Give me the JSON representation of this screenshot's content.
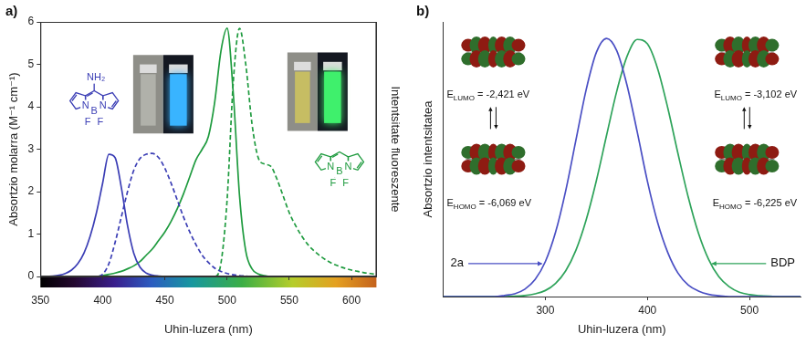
{
  "chart_data": [
    {
      "type": "line",
      "title": "a)",
      "x_label": "Uhin-luzera (nm)",
      "y_label": "Absortzio molarra (M⁻¹ cm⁻¹)",
      "y2_label": "Intentsitate fluoreszente",
      "x": [
        350,
        355,
        360,
        365,
        370,
        375,
        380,
        385,
        390,
        395,
        400,
        405,
        410,
        415,
        420,
        425,
        430,
        435,
        440,
        445,
        450,
        455,
        460,
        465,
        470,
        475,
        480,
        485,
        490,
        495,
        500,
        505,
        510,
        515,
        520,
        525,
        530,
        535,
        540,
        545,
        550,
        555,
        560,
        565,
        570,
        575,
        580,
        585,
        590,
        595,
        600,
        605,
        610,
        615,
        620
      ],
      "xlim": [
        350,
        620
      ],
      "xticks": [
        350,
        400,
        450,
        500,
        550,
        600
      ],
      "ylim": [
        0,
        6
      ],
      "yticks": [
        0,
        1,
        2,
        3,
        4,
        5,
        6
      ],
      "grid": false,
      "series": [
        {
          "color": "#3b3eb5",
          "line_style": "solid",
          "values": [
            0,
            0,
            0.01,
            0.03,
            0.07,
            0.15,
            0.3,
            0.55,
            0.95,
            1.5,
            2.2,
            2.88,
            2.8,
            2.1,
            1.2,
            0.55,
            0.22,
            0.08,
            0.03,
            0.01,
            0,
            0,
            0,
            0,
            0,
            0,
            0,
            0,
            0,
            0,
            0,
            0,
            0,
            0,
            0,
            0,
            0,
            0,
            0,
            0,
            0,
            0,
            0,
            0,
            0,
            0,
            0,
            0,
            0,
            0,
            0,
            0,
            0,
            0,
            0
          ]
        },
        {
          "color": "#3b3eb5",
          "line_style": "dashed",
          "values": [
            0,
            0,
            0,
            0,
            0,
            0,
            0,
            0,
            0,
            0,
            0.05,
            0.3,
            0.8,
            1.4,
            2.0,
            2.5,
            2.78,
            2.88,
            2.9,
            2.8,
            2.55,
            2.2,
            1.8,
            1.4,
            1.05,
            0.75,
            0.5,
            0.33,
            0.2,
            0.12,
            0.07,
            0.04,
            0.02,
            0.01,
            0,
            0,
            0,
            0,
            0,
            0,
            0,
            0,
            0,
            0,
            0,
            0,
            0,
            0,
            0,
            0,
            0,
            0,
            0,
            0,
            0
          ]
        },
        {
          "color": "#1f9b3f",
          "line_style": "solid",
          "values": [
            0,
            0,
            0,
            0,
            0,
            0,
            0,
            0,
            0,
            0,
            0.02,
            0.05,
            0.08,
            0.12,
            0.18,
            0.25,
            0.35,
            0.5,
            0.65,
            0.85,
            1.05,
            1.3,
            1.6,
            1.95,
            2.35,
            2.75,
            3.0,
            3.3,
            4.1,
            5.3,
            5.85,
            4.3,
            1.9,
            0.6,
            0.18,
            0.06,
            0.02,
            0,
            0,
            0,
            0,
            0,
            0,
            0,
            0,
            0,
            0,
            0,
            0,
            0,
            0,
            0,
            0,
            0,
            0
          ]
        },
        {
          "color": "#1f9b3f",
          "line_style": "dashed",
          "values": [
            0,
            0,
            0,
            0,
            0,
            0,
            0,
            0,
            0,
            0,
            0,
            0,
            0,
            0,
            0,
            0,
            0,
            0,
            0,
            0,
            0,
            0,
            0,
            0,
            0,
            0,
            0,
            0,
            0,
            0.3,
            1.8,
            4.6,
            5.85,
            5.0,
            3.6,
            2.8,
            2.65,
            2.6,
            2.3,
            1.9,
            1.5,
            1.2,
            0.95,
            0.75,
            0.6,
            0.48,
            0.38,
            0.3,
            0.24,
            0.19,
            0.15,
            0.12,
            0.09,
            0.07,
            0.05
          ]
        }
      ],
      "annotations": [
        {
          "texts": [
            "NH₂",
            "N",
            "N",
            "B",
            "F",
            "F"
          ],
          "color": "#3b3eb5"
        },
        {
          "texts": [
            "N",
            "N",
            "B",
            "F",
            "F"
          ],
          "color": "#1f9b3f"
        }
      ]
    },
    {
      "type": "line",
      "title": "b)",
      "x_label": "Uhin-luzera (nm)",
      "y_label": "Absortzio intentsitatea",
      "x": [
        200,
        210,
        220,
        230,
        240,
        250,
        260,
        270,
        280,
        290,
        300,
        310,
        320,
        330,
        340,
        350,
        360,
        370,
        380,
        390,
        400,
        410,
        420,
        430,
        440,
        450,
        460,
        470,
        480,
        490,
        500,
        510,
        520,
        530,
        540,
        550
      ],
      "xlim": [
        200,
        550
      ],
      "xticks": [
        300,
        400,
        500
      ],
      "ylim": [
        0,
        1
      ],
      "grid": false,
      "tick_labels": "x",
      "series": [
        {
          "name": "2a",
          "color": "#4a4fc4",
          "line_style": "solid",
          "values": [
            0,
            0,
            0,
            0,
            0,
            0,
            0.004,
            0.01,
            0.027,
            0.062,
            0.127,
            0.234,
            0.386,
            0.57,
            0.753,
            0.889,
            0.94,
            0.895,
            0.77,
            0.6,
            0.42,
            0.27,
            0.16,
            0.085,
            0.042,
            0.02,
            0.008,
            0.003,
            0,
            0,
            0,
            0,
            0,
            0,
            0,
            0
          ]
        },
        {
          "name": "BDP",
          "color": "#2ea35a",
          "line_style": "solid",
          "values": [
            0,
            0,
            0,
            0,
            0,
            0,
            0,
            0.001,
            0.004,
            0.01,
            0.022,
            0.048,
            0.094,
            0.169,
            0.279,
            0.422,
            0.587,
            0.748,
            0.874,
            0.936,
            0.92,
            0.83,
            0.686,
            0.52,
            0.362,
            0.231,
            0.135,
            0.072,
            0.036,
            0.016,
            0.007,
            0.003,
            0.001,
            0,
            0,
            0
          ]
        }
      ],
      "annotations": [
        "ELUMO = -2,421 eV",
        "EHOMO = -6,069 eV",
        "ELUMO = -3,102 eV",
        "EHOMO = -6,225 eV"
      ]
    }
  ]
}
